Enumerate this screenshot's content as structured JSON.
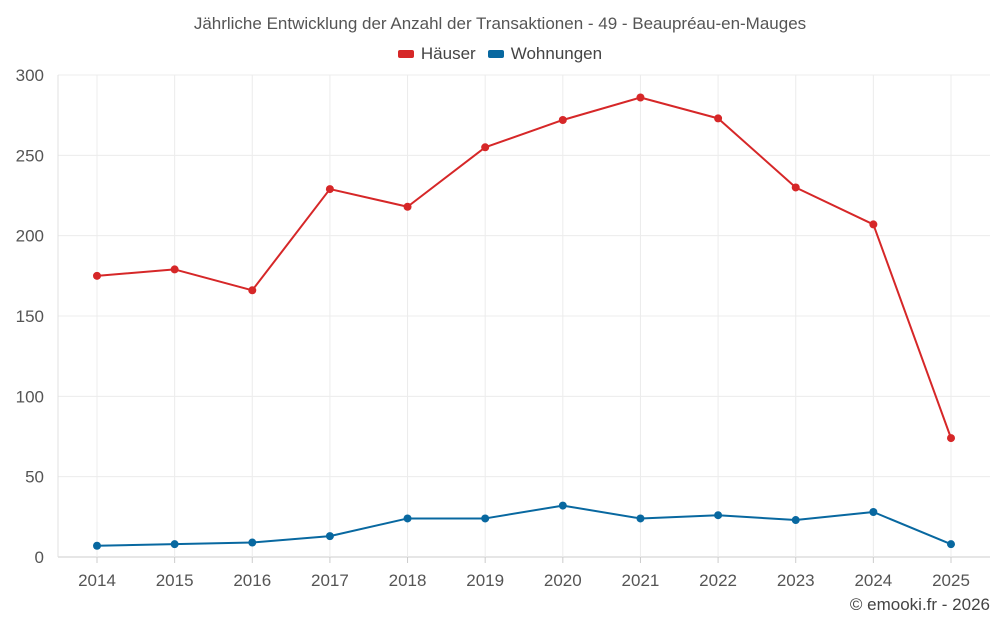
{
  "chart_data": {
    "type": "line",
    "title": "Jährliche Entwicklung der Anzahl der Transaktionen - 49 - Beaupréau-en-Mauges",
    "categories": [
      "2014",
      "2015",
      "2016",
      "2017",
      "2018",
      "2019",
      "2020",
      "2021",
      "2022",
      "2023",
      "2024",
      "2025"
    ],
    "series": [
      {
        "name": "Häuser",
        "color": "#d62728",
        "values": [
          175,
          179,
          166,
          229,
          218,
          255,
          272,
          286,
          273,
          230,
          207,
          74
        ]
      },
      {
        "name": "Wohnungen",
        "color": "#0868a0",
        "values": [
          7,
          8,
          9,
          13,
          24,
          24,
          32,
          24,
          26,
          23,
          28,
          8
        ]
      }
    ],
    "ylim": [
      0,
      300
    ],
    "yticks": [
      0,
      50,
      100,
      150,
      200,
      250,
      300
    ],
    "xlabel": "",
    "ylabel": "",
    "legend": "top-center",
    "grid": true
  },
  "credit": "© emooki.fr - 2026"
}
